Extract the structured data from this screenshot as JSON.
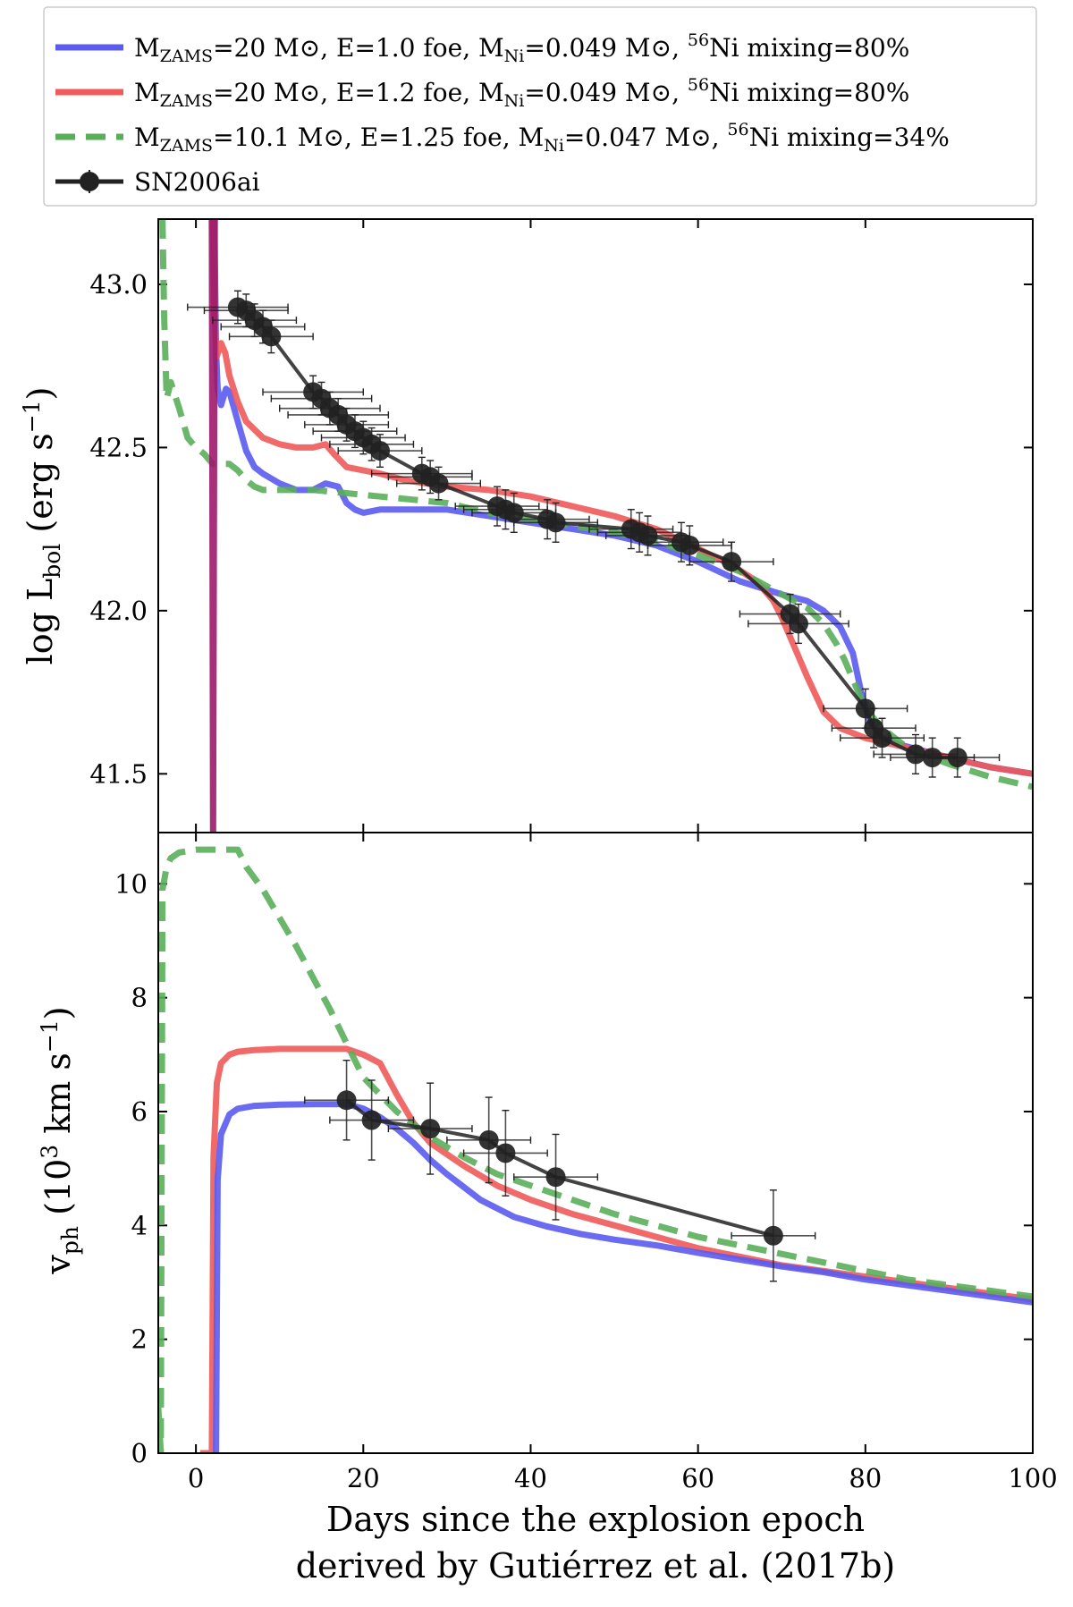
{
  "legend": {
    "placement": "top",
    "entries": [
      {
        "series_index": 0,
        "m_zams": "20",
        "energy": "1.0",
        "m_ni": "0.049",
        "mixing": "80%"
      },
      {
        "series_index": 1,
        "m_zams": "20",
        "energy": "1.2",
        "m_ni": "0.049",
        "mixing": "80%"
      },
      {
        "series_index": 2,
        "m_zams": "10.1",
        "energy": "1.25",
        "m_ni": "0.047",
        "mixing": "34%"
      },
      {
        "series_index": 3,
        "label": "SN2006ai"
      }
    ],
    "strings": {
      "m": "M",
      "zams_sub": "ZAMS",
      "eq": "=",
      "msun": "M⊙",
      "comma": ",",
      "e_prefix": "E=",
      "foe": "foe",
      "ni_sub": "Ni",
      "ni_sup": "56",
      "ni_mix": "Ni mixing="
    }
  },
  "chart_data": [
    {
      "type": "line",
      "panel": "top",
      "ylabel_main": "log L",
      "ylabel_sub": "bol",
      "ylabel_unit_open": "(erg s",
      "ylabel_unit_sup": "−1",
      "ylabel_unit_close": ")",
      "xlim": [
        -4.5,
        100
      ],
      "ylim": [
        41.32,
        43.2
      ],
      "yticks": [
        41.5,
        42.0,
        42.5,
        43.0
      ],
      "ytick_labels": [
        "41.5",
        "42.0",
        "42.5",
        "43.0"
      ],
      "series": [
        {
          "color": "#5b5bf0",
          "style": "solid",
          "x": [
            2.2,
            2.4,
            2.6,
            3.0,
            3.6,
            4.0,
            5.0,
            6.0,
            7.0,
            8.0,
            10.0,
            12.0,
            14.0,
            15.5,
            17.0,
            18.0,
            19.0,
            20.0,
            22.0,
            25.0,
            30.0,
            35.0,
            40.0,
            45.0,
            50.0,
            55.0,
            60.0,
            65.0,
            70.0,
            73.0,
            75.0,
            77.0,
            78.5,
            79.5,
            80.5,
            82.0,
            84.0,
            87.0,
            90.0,
            95.0,
            100.0
          ],
          "y": [
            43.2,
            42.8,
            42.68,
            42.63,
            42.68,
            42.67,
            42.58,
            42.49,
            42.44,
            42.42,
            42.39,
            42.37,
            42.37,
            42.39,
            42.38,
            42.33,
            42.31,
            42.3,
            42.31,
            42.31,
            42.31,
            42.29,
            42.27,
            42.25,
            42.23,
            42.2,
            42.15,
            42.09,
            42.05,
            42.03,
            42.0,
            41.95,
            41.87,
            41.75,
            41.66,
            41.61,
            41.59,
            41.57,
            41.55,
            41.52,
            41.5
          ]
        },
        {
          "color": "#f05a5a",
          "style": "solid",
          "x": [
            2.0,
            2.2,
            2.5,
            3.0,
            3.5,
            4.0,
            5.0,
            6.0,
            8.0,
            10.0,
            12.0,
            14.0,
            15.5,
            16.5,
            18.0,
            20.0,
            22.0,
            25.0,
            30.0,
            35.0,
            40.0,
            45.0,
            50.0,
            55.0,
            60.0,
            64.0,
            67.0,
            69.0,
            70.0,
            71.0,
            72.0,
            73.0,
            75.0,
            77.0,
            80.0,
            85.0,
            90.0,
            95.0,
            100.0
          ],
          "y": [
            43.2,
            42.9,
            42.78,
            42.82,
            42.79,
            42.72,
            42.64,
            42.58,
            42.53,
            42.51,
            42.5,
            42.5,
            42.51,
            42.48,
            42.44,
            42.43,
            42.42,
            42.4,
            42.38,
            42.37,
            42.35,
            42.32,
            42.29,
            42.25,
            42.19,
            42.14,
            42.09,
            42.03,
            41.98,
            41.92,
            41.86,
            41.8,
            41.69,
            41.64,
            41.61,
            41.58,
            41.55,
            41.52,
            41.5
          ]
        },
        {
          "color": "#5aae5a",
          "style": "dashed",
          "x": [
            -4.0,
            -3.8,
            -3.5,
            -3.0,
            -2.0,
            -1.0,
            0.0,
            1.0,
            2.0,
            3.0,
            4.0,
            5.0,
            6.0,
            7.0,
            8.0,
            10.0,
            14.0,
            18.0,
            22.0,
            26.0,
            30.0,
            35.0,
            40.0,
            45.0,
            50.0,
            55.0,
            60.0,
            65.0,
            70.0,
            73.0,
            75.0,
            76.5,
            77.5,
            78.5,
            80.0,
            82.0,
            85.0,
            90.0,
            95.0,
            100.0
          ],
          "y": [
            43.2,
            42.9,
            42.65,
            42.7,
            42.62,
            42.53,
            42.5,
            42.48,
            42.45,
            42.45,
            42.45,
            42.43,
            42.4,
            42.38,
            42.37,
            42.37,
            42.37,
            42.36,
            42.35,
            42.34,
            42.33,
            42.3,
            42.28,
            42.26,
            42.24,
            42.21,
            42.17,
            42.12,
            42.05,
            42.01,
            41.96,
            41.9,
            41.85,
            41.79,
            41.7,
            41.64,
            41.58,
            41.53,
            41.49,
            41.46
          ]
        },
        {
          "color": "#9c1a6a",
          "style": "solid",
          "role": "overlap",
          "x": [
            1.9,
            2.05,
            2.25
          ],
          "y": [
            43.2,
            41.32,
            43.2
          ]
        },
        {
          "color": "#222222",
          "style": "marker",
          "x": [
            5,
            6,
            7,
            8,
            9,
            14,
            15,
            16,
            17,
            18,
            19,
            20,
            21,
            22,
            27,
            28,
            29,
            36,
            37,
            38,
            42,
            43,
            52,
            53,
            54,
            58,
            59,
            64,
            71,
            72,
            80,
            81,
            82,
            86,
            88,
            91
          ],
          "y": [
            42.93,
            42.92,
            42.89,
            42.87,
            42.84,
            42.67,
            42.65,
            42.62,
            42.6,
            42.57,
            42.55,
            42.53,
            42.51,
            42.49,
            42.42,
            42.41,
            42.39,
            42.32,
            42.31,
            42.3,
            42.28,
            42.27,
            42.25,
            42.24,
            42.23,
            42.21,
            42.2,
            42.15,
            41.99,
            41.96,
            41.7,
            41.64,
            41.61,
            41.56,
            41.55,
            41.55
          ],
          "xerr": [
            6,
            5,
            5,
            5,
            5,
            6,
            6,
            6,
            6,
            5,
            5,
            5,
            5,
            5,
            6,
            5,
            5,
            5,
            5,
            5,
            5,
            5,
            5,
            5,
            5,
            5,
            5,
            5,
            6,
            6,
            5,
            5,
            5,
            5,
            5,
            5
          ],
          "yerr": [
            0.05,
            0.05,
            0.05,
            0.05,
            0.05,
            0.05,
            0.05,
            0.05,
            0.05,
            0.05,
            0.05,
            0.05,
            0.05,
            0.05,
            0.05,
            0.05,
            0.05,
            0.06,
            0.06,
            0.06,
            0.06,
            0.06,
            0.06,
            0.06,
            0.06,
            0.06,
            0.06,
            0.06,
            0.06,
            0.06,
            0.06,
            0.06,
            0.06,
            0.06,
            0.06,
            0.06
          ]
        }
      ]
    },
    {
      "type": "line",
      "panel": "bottom",
      "xlabel_line1": "Days since the explosion epoch",
      "xlabel_line2": "derived by Gutiérrez et al. (2017b)",
      "ylabel_main": "v",
      "ylabel_sub": "ph",
      "ylabel_unit_open": "(10",
      "ylabel_unit_sup1": "3",
      "ylabel_unit_mid": " km s",
      "ylabel_unit_sup2": "−1",
      "ylabel_unit_close": ")",
      "xlim": [
        -4.5,
        100
      ],
      "ylim": [
        0,
        10.9
      ],
      "xticks": [
        0,
        20,
        40,
        60,
        80,
        100
      ],
      "xtick_labels": [
        "0",
        "20",
        "40",
        "60",
        "80",
        "100"
      ],
      "yticks": [
        0,
        2,
        4,
        6,
        8,
        10
      ],
      "ytick_labels": [
        "0",
        "2",
        "4",
        "6",
        "8",
        "10"
      ],
      "series": [
        {
          "color": "#f05a5a",
          "style": "solid",
          "x": [
            0.5,
            1.9,
            2.1,
            2.5,
            3.0,
            4.0,
            5.0,
            7.0,
            10.0,
            14.0,
            18.0,
            20.0,
            22.0,
            24.0,
            26.0,
            28.0,
            32.0,
            36.0,
            40.0,
            45.0,
            50.0,
            55.0,
            60.0,
            65.0,
            70.0,
            75.0,
            80.0,
            85.0,
            90.0,
            95.0,
            100.0
          ],
          "y": [
            0,
            0,
            5.2,
            6.5,
            6.85,
            7.0,
            7.05,
            7.08,
            7.1,
            7.1,
            7.1,
            7.0,
            6.85,
            6.3,
            5.8,
            5.45,
            5.05,
            4.7,
            4.45,
            4.2,
            4.0,
            3.8,
            3.6,
            3.45,
            3.3,
            3.2,
            3.1,
            3.0,
            2.9,
            2.8,
            2.7
          ]
        },
        {
          "color": "#5b5bf0",
          "style": "solid",
          "x": [
            2.4,
            2.6,
            3.0,
            4.0,
            5.0,
            7.0,
            10.0,
            14.0,
            18.0,
            20.0,
            22.0,
            24.0,
            26.0,
            28.0,
            30.0,
            34.0,
            38.0,
            42.0,
            46.0,
            50.0,
            55.0,
            60.0,
            65.0,
            70.0,
            75.0,
            80.0,
            85.0,
            90.0,
            95.0,
            100.0
          ],
          "y": [
            0,
            4.8,
            5.6,
            5.95,
            6.05,
            6.1,
            6.12,
            6.13,
            6.13,
            6.05,
            5.9,
            5.7,
            5.45,
            5.15,
            4.9,
            4.45,
            4.15,
            3.98,
            3.85,
            3.75,
            3.65,
            3.52,
            3.4,
            3.28,
            3.18,
            3.05,
            2.95,
            2.85,
            2.75,
            2.65
          ]
        },
        {
          "color": "#5aae5a",
          "style": "dashed",
          "x": [
            -4.5,
            -4.2,
            -4.0,
            -3.5,
            -3.0,
            -2.0,
            0.0,
            3.0,
            5.0,
            6.0,
            8.0,
            12.0,
            16.0,
            20.0,
            24.0,
            28.0,
            32.0,
            36.0,
            40.0,
            45.0,
            50.0,
            55.0,
            60.0,
            65.0,
            70.0,
            75.0,
            80.0,
            85.0,
            90.0,
            95.0,
            100.0
          ],
          "y": [
            0.8,
            0,
            9.9,
            10.3,
            10.45,
            10.55,
            10.6,
            10.6,
            10.6,
            10.3,
            9.9,
            8.9,
            7.8,
            6.6,
            6.0,
            5.55,
            5.2,
            4.9,
            4.7,
            4.45,
            4.2,
            4.0,
            3.8,
            3.65,
            3.5,
            3.35,
            3.2,
            3.05,
            2.95,
            2.85,
            2.75
          ]
        },
        {
          "color": "#222222",
          "style": "marker",
          "x": [
            18,
            21,
            28,
            35,
            37,
            43,
            69
          ],
          "y": [
            6.2,
            5.85,
            5.7,
            5.5,
            5.27,
            4.85,
            3.82
          ],
          "xerr": [
            5,
            5,
            5,
            5,
            5,
            5,
            5
          ],
          "yerr": [
            0.7,
            0.7,
            0.8,
            0.75,
            0.75,
            0.75,
            0.8
          ]
        }
      ]
    }
  ]
}
